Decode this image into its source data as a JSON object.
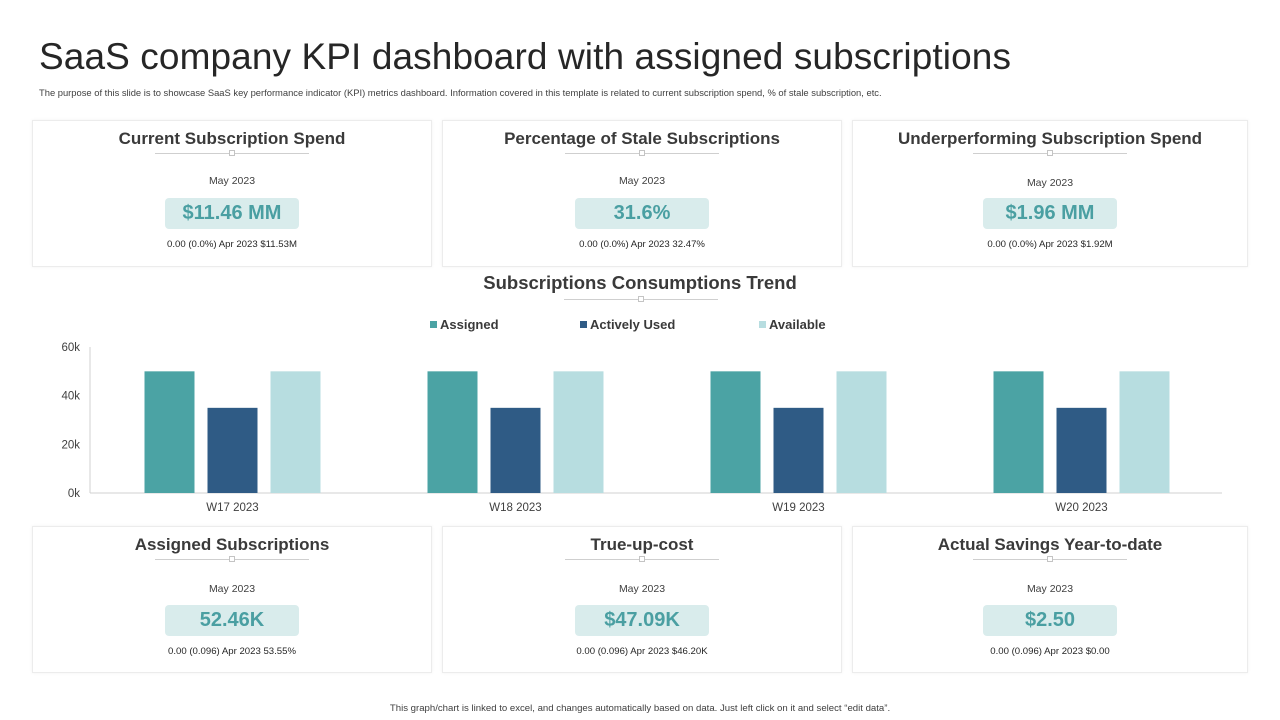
{
  "header": {
    "title": "SaaS company KPI dashboard with assigned subscriptions",
    "subtitle": "The purpose of this slide is to showcase SaaS key performance indicator (KPI) metrics dashboard. Information covered in this template is related to current subscription spend, % of stale subscription, etc."
  },
  "kpis_top": [
    {
      "title": "Current Subscription Spend",
      "date": "May 2023",
      "value": "$11.46 MM",
      "footnote": "0.00 (0.0%) Apr 2023 $11.53M"
    },
    {
      "title": "Percentage of Stale Subscriptions",
      "date": "May 2023",
      "value": "31.6%",
      "footnote": "0.00 (0.0%) Apr 2023 32.47%"
    },
    {
      "title": "Underperforming Subscription Spend",
      "date": "May 2023",
      "value": "$1.96 MM",
      "footnote": "0.00 (0.0%) Apr 2023 $1.92M"
    }
  ],
  "kpis_bottom": [
    {
      "title": "Assigned Subscriptions",
      "date": "May 2023",
      "value": "52.46K",
      "footnote": "0.00 (0.096) Apr 2023 53.55%"
    },
    {
      "title": "True-up-cost",
      "date": "May 2023",
      "value": "$47.09K",
      "footnote": "0.00 (0.096) Apr 2023 $46.20K"
    },
    {
      "title": "Actual Savings Year-to-date",
      "date": "May 2023",
      "value": "$2.50",
      "footnote": "0.00 (0.096) Apr 2023 $0.00"
    }
  ],
  "colors": {
    "assigned": "#4ba3a4",
    "actively_used": "#2f5b85",
    "available": "#b7dde0",
    "pill_bg": "#d9ecec",
    "pill_text": "#4a9fa2"
  },
  "chart_data": {
    "type": "bar",
    "title": "Subscriptions Consumptions Trend",
    "categories": [
      "W17 2023",
      "W18 2023",
      "W19 2023",
      "W20 2023"
    ],
    "series": [
      {
        "name": "Assigned",
        "values": [
          50000,
          50000,
          50000,
          50000
        ]
      },
      {
        "name": "Actively Used",
        "values": [
          35000,
          35000,
          35000,
          35000
        ]
      },
      {
        "name": "Available",
        "values": [
          50000,
          50000,
          50000,
          50000
        ]
      }
    ],
    "ylim": [
      0,
      60000
    ],
    "yticks": [
      0,
      20000,
      40000,
      60000
    ],
    "ytick_labels": [
      "0k",
      "20k",
      "40k",
      "60k"
    ],
    "xlabel": "",
    "ylabel": "",
    "legend": "top-center",
    "grid": false
  },
  "footer": {
    "note": "This graph/chart is linked to excel, and changes automatically based on data. Just left click on it and select “edit data”."
  }
}
